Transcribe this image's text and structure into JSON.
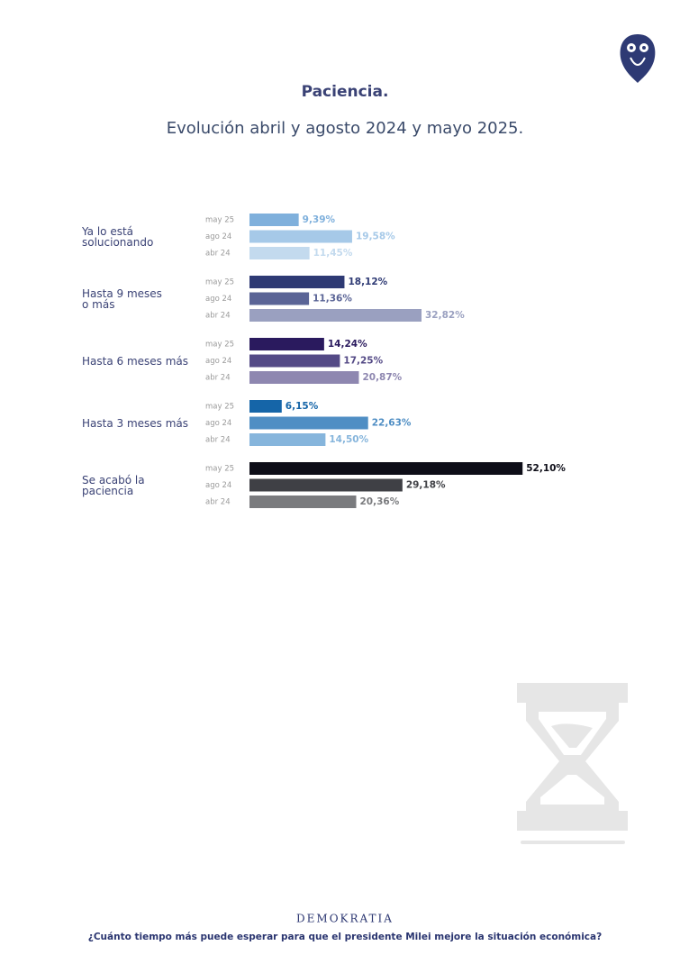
{
  "chart_data": {
    "type": "bar",
    "orientation": "horizontal",
    "title": "Paciencia.",
    "subtitle": "Evolución abril y agosto 2024 y mayo 2025.",
    "categories": [
      "Ya lo está\nsolucionando",
      "Hasta 9 meses\no más",
      "Hasta 6 meses más",
      "Hasta 3 meses más",
      "Se acabó la\npaciencia"
    ],
    "series": [
      {
        "name": "may 25",
        "colors": [
          "#7fb0dc",
          "#2e3a74",
          "#2a1a5e",
          "#1565a8",
          "#0e0e18"
        ],
        "values": [
          9.39,
          18.12,
          14.24,
          6.15,
          52.1
        ],
        "value_labels": [
          "9,39%",
          "18,12%",
          "14,24%",
          "6,15%",
          "52,10%"
        ]
      },
      {
        "name": "ago 24",
        "colors": [
          "#a6c9e8",
          "#5a6496",
          "#544a86",
          "#4f8ec4",
          "#3f4045"
        ],
        "values": [
          19.58,
          11.36,
          17.25,
          22.63,
          29.18
        ],
        "value_labels": [
          "19,58%",
          "11,36%",
          "17,25%",
          "22,63%",
          "29,18%"
        ]
      },
      {
        "name": "abr 24",
        "colors": [
          "#c3daee",
          "#9aa0c0",
          "#8e87b0",
          "#86b5dc",
          "#7a7b7e"
        ],
        "values": [
          11.45,
          32.82,
          20.87,
          14.5,
          20.36
        ],
        "value_labels": [
          "11,45%",
          "32,82%",
          "20,87%",
          "14,50%",
          "20,36%"
        ]
      }
    ],
    "brand": "DEMOKRATIA",
    "question": "¿Cuánto tiempo más puede esperar para que el presidente Milei mejore la situación económica?"
  }
}
